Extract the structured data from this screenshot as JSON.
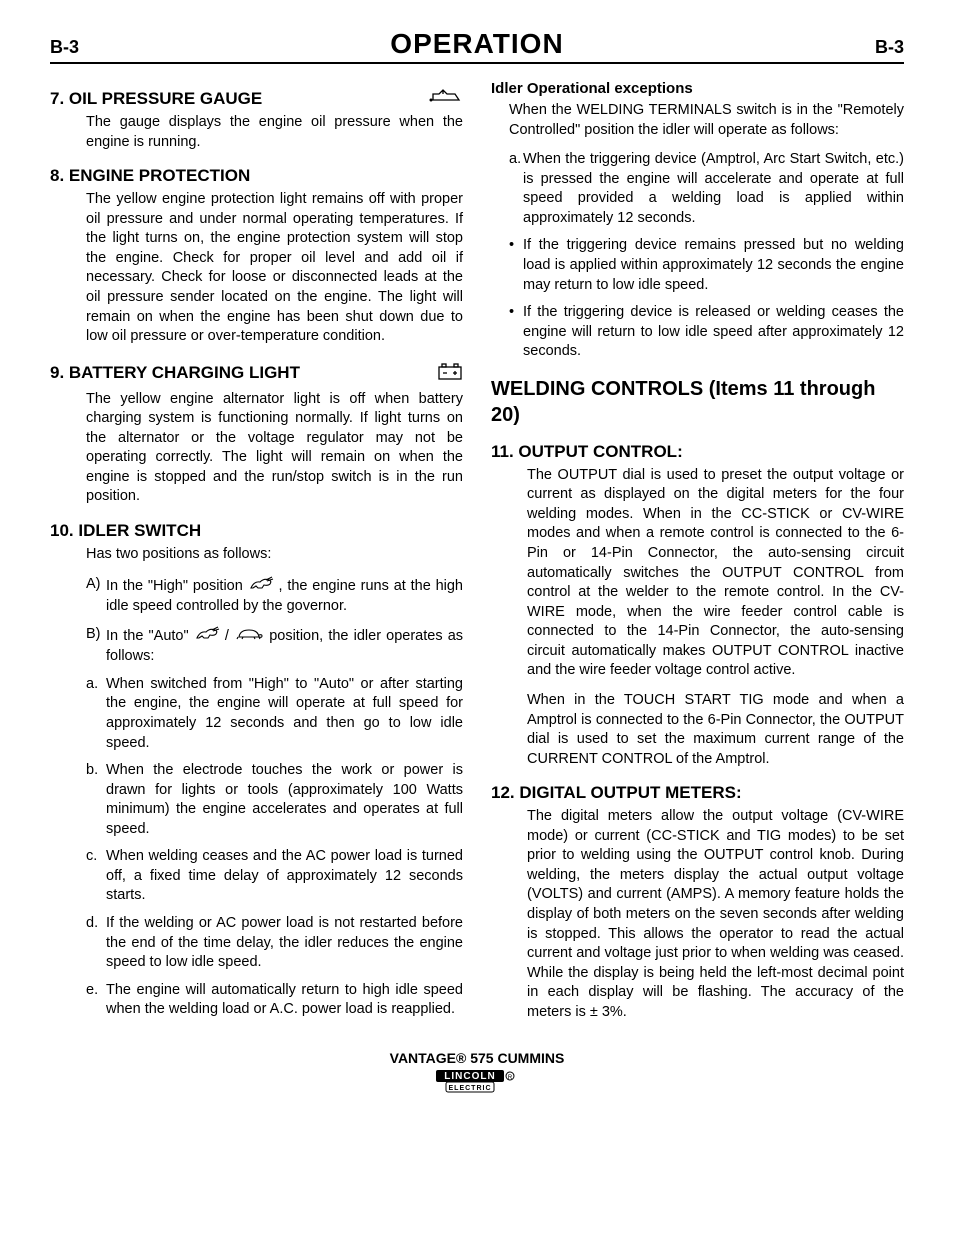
{
  "header": {
    "page_left": "B-3",
    "title": "OPERATION",
    "page_right": "B-3"
  },
  "left_column": {
    "sec7": {
      "heading": "7. OIL PRESSURE GAUGE",
      "icon": "oil-pressure-icon",
      "body": "The gauge displays the engine oil pressure when the engine is running."
    },
    "sec8": {
      "heading": "8. ENGINE PROTECTION",
      "body": "The yellow engine protection light remains off with proper oil pressure and under normal operating temperatures. If the light turns on, the engine protection system will stop the engine. Check for proper oil level and add oil if necessary. Check for loose or disconnected leads at the oil pressure sender located on the engine. The light will remain on when the engine has been shut down due to low oil pressure or over-temperature condition."
    },
    "sec9": {
      "heading": "9. BATTERY CHARGING LIGHT",
      "icon": "battery-icon",
      "body": "The yellow engine alternator light is off when battery charging system is functioning normally. If light turns on the alternator or the voltage regulator may not be operating correctly. The light will remain on when the engine is stopped and the run/stop switch is in the run position."
    },
    "sec10": {
      "heading": "10. IDLER SWITCH",
      "intro": "Has two positions as follows:",
      "itemA_pre": "In the \"High\" position ",
      "itemA_post": ", the engine runs at the high idle speed controlled by the governor.",
      "itemB_pre": "In the \"Auto\" ",
      "itemB_mid": " / ",
      "itemB_post": " position, the idler operates as follows:",
      "items": [
        {
          "label": "a.",
          "text": "When switched from \"High\" to \"Auto\" or after starting the engine, the engine will operate at full speed for approximately 12 seconds and then go to low idle speed."
        },
        {
          "label": "b.",
          "text": "When the electrode touches the work or power is drawn for lights or tools (approximately 100 Watts minimum) the engine accelerates and operates at full speed."
        },
        {
          "label": "c.",
          "text": "When welding ceases and the AC power load is turned off, a fixed time delay of approximately 12 seconds starts."
        },
        {
          "label": "d.",
          "text": "If the welding or AC power load is not restarted before the end of the time delay, the idler reduces the engine speed to low idle speed."
        },
        {
          "label": "e.",
          "text": "The engine will automatically return to high idle speed when the welding load or A.C. power load is reapplied."
        }
      ]
    }
  },
  "right_column": {
    "idler_exceptions": {
      "heading": "Idler Operational exceptions",
      "intro": "When the WELDING TERMINALS switch is in the \"Remotely Controlled\" position the idler will operate as follows:",
      "item_a": {
        "label": "a.",
        "text": "When the triggering device (Amptrol, Arc Start Switch, etc.) is pressed the engine will accelerate and operate at full speed provided a welding load is applied within approximately 12 seconds."
      },
      "bullets": [
        "If the triggering device remains pressed but no welding load is applied within approximately 12 seconds the engine may return to low idle speed.",
        "If the triggering device is released or welding ceases the engine will return to low idle speed after approximately 12 seconds."
      ]
    },
    "welding_heading": "WELDING CONTROLS (Items 11 through 20)",
    "sec11": {
      "heading": "11. OUTPUT CONTROL:",
      "body1": "The OUTPUT dial is used to preset the output voltage or current as displayed on the digital meters for the four welding modes. When in the CC-STICK or CV-WIRE modes and when a remote control is connected to the 6-Pin or 14-Pin Connector, the auto-sensing circuit automatically switches the OUTPUT CONTROL from control at the welder to the remote control. In the CV-WIRE mode, when the wire feeder control cable is connected to the 14-Pin Connector, the auto-sensing circuit automatically makes OUTPUT CONTROL inactive and the wire feeder voltage control active.",
      "body2": "When in the TOUCH START TIG mode and when a Amptrol is  connected to the 6-Pin Connector, the OUTPUT dial is used to set the maximum current range of the CURRENT CONTROL of the Amptrol."
    },
    "sec12": {
      "heading": "12. DIGITAL OUTPUT METERS:",
      "body": "The digital meters allow the output voltage (CV-WIRE mode) or current (CC-STICK and TIG modes) to be set prior to welding using the OUTPUT control knob. During welding, the meters display the actual output voltage (VOLTS) and current (AMPS). A memory feature holds the display of both meters on the seven seconds after welding is stopped. This allows the operator to read the actual current and voltage just prior to when welding was ceased. While the display is being held the left-most decimal point in each display will be flashing. The accuracy of the meters is ± 3%."
    }
  },
  "footer": {
    "product": "VANTAGE® 575 CUMMINS",
    "brand_top": "LINCOLN",
    "brand_bottom": "ELECTRIC"
  },
  "colors": {
    "text": "#000000",
    "background": "#ffffff",
    "rule": "#000000"
  }
}
